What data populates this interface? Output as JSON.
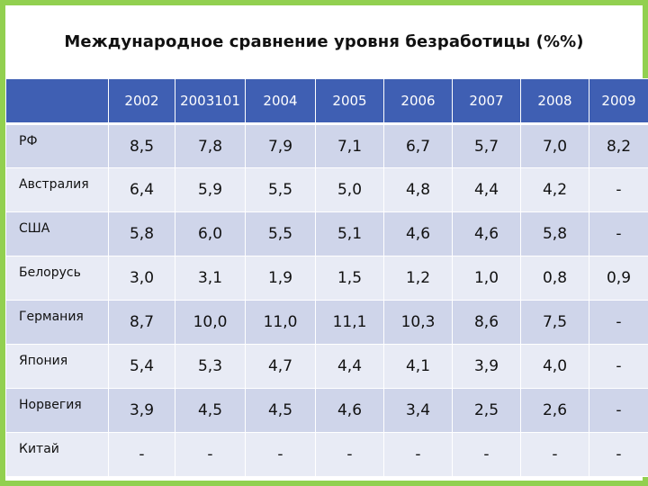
{
  "title": "Международное сравнение  уровня безработицы (%%)",
  "table": {
    "headers": [
      "2002",
      "2003101",
      "2004",
      "2005",
      "2006",
      "2007",
      "2008",
      "2009"
    ],
    "rows": [
      {
        "country": "РФ",
        "values": [
          "8,5",
          "7,8",
          "7,9",
          "7,1",
          "6,7",
          "5,7",
          "7,0",
          "8,2"
        ]
      },
      {
        "country": "Австралия",
        "values": [
          "6,4",
          "5,9",
          "5,5",
          "5,0",
          "4,8",
          "4,4",
          "4,2",
          "-"
        ]
      },
      {
        "country": "США",
        "values": [
          "5,8",
          "6,0",
          "5,5",
          "5,1",
          "4,6",
          "4,6",
          "5,8",
          "-"
        ]
      },
      {
        "country": "Белорусь",
        "values": [
          "3,0",
          "3,1",
          "1,9",
          "1,5",
          "1,2",
          "1,0",
          "0,8",
          "0,9"
        ]
      },
      {
        "country": "Германия",
        "values": [
          "8,7",
          "10,0",
          "11,0",
          "11,1",
          "10,3",
          "8,6",
          "7,5",
          "-"
        ]
      },
      {
        "country": "Япония",
        "values": [
          "5,4",
          "5,3",
          "4,7",
          "4,4",
          "4,1",
          "3,9",
          "4,0",
          "-"
        ]
      },
      {
        "country": "Норвегия",
        "values": [
          "3,9",
          "4,5",
          "4,5",
          "4,6",
          "3,4",
          "2,5",
          "2,6",
          "-"
        ]
      },
      {
        "country": "Китай",
        "values": [
          "-",
          "-",
          "-",
          "-",
          "-",
          "-",
          "-",
          "-"
        ]
      }
    ]
  },
  "colors": {
    "border": "#92d050",
    "header_bg": "#3f5fb3",
    "row_odd": "#cfd5ea",
    "row_even": "#e8ebf5"
  }
}
